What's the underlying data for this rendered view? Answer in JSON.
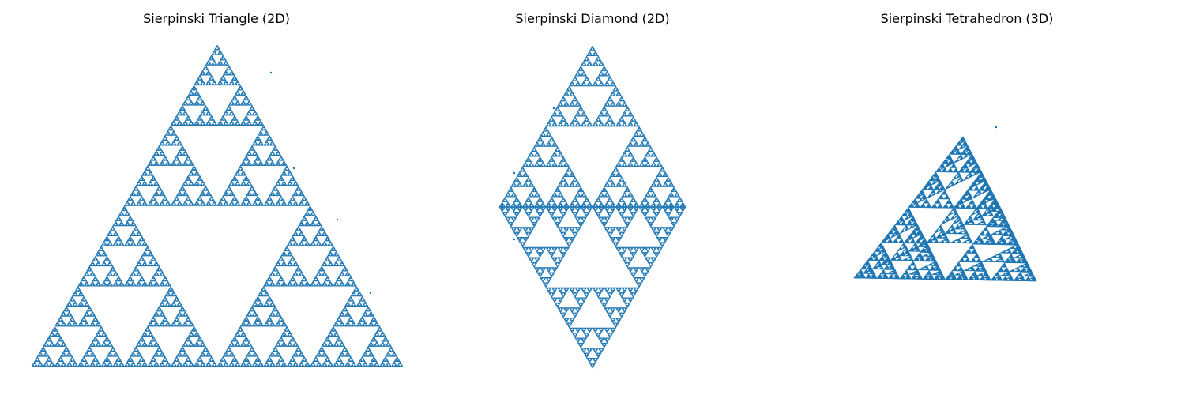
{
  "figure": {
    "background": "#ffffff"
  },
  "chart_data": [
    {
      "type": "scatter",
      "title": "Sierpinski Triangle (2D)",
      "color": "#1f77b4",
      "axis": "off",
      "grid": false,
      "legend": "none",
      "vertices": [
        [
          0,
          0
        ],
        [
          1,
          0
        ],
        [
          0.5,
          0.866
        ]
      ],
      "depth": 8,
      "xlim": [
        -0.02,
        1.02
      ],
      "ylim": [
        -0.02,
        0.89
      ]
    },
    {
      "type": "scatter",
      "title": "Sierpinski Diamond (2D)",
      "color": "#1f77b4",
      "axis": "off",
      "grid": false,
      "legend": "none",
      "vertices": [
        [
          0,
          0
        ],
        [
          0.5,
          0.866
        ],
        [
          -0.5,
          0.866
        ],
        [
          0,
          1.732
        ]
      ],
      "depth": 7,
      "xlim": [
        -0.53,
        0.53
      ],
      "ylim": [
        -0.02,
        1.752
      ]
    },
    {
      "type": "scatter",
      "title": "Sierpinski Tetrahedron (3D)",
      "color": "#1f77b4",
      "axis": "off",
      "grid": false,
      "legend": "none",
      "projection": "3d",
      "vertices": [
        [
          0,
          0,
          0
        ],
        [
          1,
          0,
          0
        ],
        [
          0.5,
          0.866,
          0
        ],
        [
          0.5,
          0.289,
          0.816
        ]
      ],
      "depth": 5
    }
  ]
}
